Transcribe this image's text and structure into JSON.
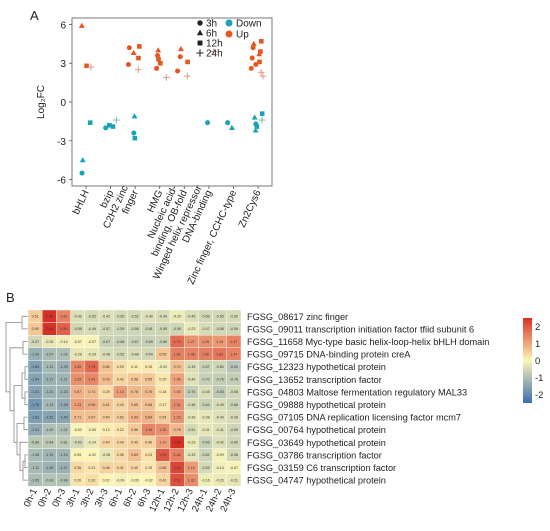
{
  "panels": {
    "a_label": "A",
    "b_label": "B"
  },
  "chart_data": [
    {
      "type": "scatter",
      "ylabel": "Log₂FC",
      "ylim": [
        -6.5,
        6.5
      ],
      "yticks": [
        "6",
        "3",
        "0",
        "-3",
        "-6"
      ],
      "ytick_values": [
        6,
        3,
        0,
        -3,
        -6
      ],
      "categories": [
        "bHLH",
        "bzip",
        "C2H2 zinc finger",
        "HMG",
        "Nucleic acid-binding, OB-fold",
        "Winged helix repressor DNA-binding",
        "Zinc finger, CCHC-type",
        "Zn2Cys6"
      ],
      "category_lines": [
        [
          "bHLH"
        ],
        [
          "bzip"
        ],
        [
          "C2H2 zinc",
          "finger"
        ],
        [
          "HMG"
        ],
        [
          "Nucleic acid-",
          "binding, OB-fold"
        ],
        [
          "Winged helix repressor",
          "DNA-binding"
        ],
        [
          "Zinc finger, CCHC-type"
        ],
        [
          "Zn2Cys6"
        ]
      ],
      "legend": {
        "shapes": [
          "3h",
          "6h",
          "12h",
          "24h"
        ],
        "directions": [
          "Down",
          "Up"
        ],
        "placement": "top-right"
      },
      "colors": {
        "Up": "#e8561f",
        "Down": "#1aa3b8"
      },
      "points": [
        {
          "c": 0,
          "y": 5.9,
          "s": "triangle",
          "d": "Up"
        },
        {
          "c": 0,
          "y": 2.8,
          "s": "square",
          "d": "Up"
        },
        {
          "c": 0,
          "y": 2.7,
          "s": "plus",
          "d": "Up"
        },
        {
          "c": 0,
          "y": -1.6,
          "s": "square",
          "d": "Down"
        },
        {
          "c": 0,
          "y": -4.5,
          "s": "triangle",
          "d": "Down"
        },
        {
          "c": 0,
          "y": -5.5,
          "s": "circle",
          "d": "Down"
        },
        {
          "c": 1,
          "y": -1.4,
          "s": "plus",
          "d": "Down"
        },
        {
          "c": 1,
          "y": -1.8,
          "s": "square",
          "d": "Down"
        },
        {
          "c": 1,
          "y": -2.0,
          "s": "circle",
          "d": "Down"
        },
        {
          "c": 1,
          "y": -1.9,
          "s": "square",
          "d": "Down"
        },
        {
          "c": 2,
          "y": 4.3,
          "s": "square",
          "d": "Up"
        },
        {
          "c": 2,
          "y": 4.2,
          "s": "circle",
          "d": "Up"
        },
        {
          "c": 2,
          "y": 3.8,
          "s": "triangle",
          "d": "Up"
        },
        {
          "c": 2,
          "y": 3.4,
          "s": "square",
          "d": "Up"
        },
        {
          "c": 2,
          "y": 2.9,
          "s": "circle",
          "d": "Up"
        },
        {
          "c": 2,
          "y": 2.5,
          "s": "plus",
          "d": "Up"
        },
        {
          "c": 2,
          "y": -1.1,
          "s": "triangle",
          "d": "Down"
        },
        {
          "c": 2,
          "y": -2.4,
          "s": "circle",
          "d": "Down"
        },
        {
          "c": 2,
          "y": -2.8,
          "s": "square",
          "d": "Down"
        },
        {
          "c": 3,
          "y": 4.0,
          "s": "triangle",
          "d": "Up"
        },
        {
          "c": 3,
          "y": 3.6,
          "s": "circle",
          "d": "Up"
        },
        {
          "c": 3,
          "y": 3.3,
          "s": "square",
          "d": "Up"
        },
        {
          "c": 3,
          "y": 3.0,
          "s": "square",
          "d": "Up"
        },
        {
          "c": 3,
          "y": 2.6,
          "s": "circle",
          "d": "Up"
        },
        {
          "c": 3,
          "y": 1.9,
          "s": "plus",
          "d": "Up"
        },
        {
          "c": 4,
          "y": 4.1,
          "s": "triangle",
          "d": "Up"
        },
        {
          "c": 4,
          "y": 3.5,
          "s": "circle",
          "d": "Up"
        },
        {
          "c": 4,
          "y": 3.1,
          "s": "square",
          "d": "Up"
        },
        {
          "c": 4,
          "y": 2.4,
          "s": "circle",
          "d": "Up"
        },
        {
          "c": 4,
          "y": 2.0,
          "s": "plus",
          "d": "Up"
        },
        {
          "c": 5,
          "y": 3.9,
          "s": "plus",
          "d": "Up"
        },
        {
          "c": 5,
          "y": -1.6,
          "s": "circle",
          "d": "Down"
        },
        {
          "c": 6,
          "y": -1.6,
          "s": "circle",
          "d": "Down"
        },
        {
          "c": 6,
          "y": -2.0,
          "s": "triangle",
          "d": "Down"
        },
        {
          "c": 7,
          "y": 4.7,
          "s": "square",
          "d": "Up"
        },
        {
          "c": 7,
          "y": 4.5,
          "s": "triangle",
          "d": "Up"
        },
        {
          "c": 7,
          "y": 4.2,
          "s": "circle",
          "d": "Up"
        },
        {
          "c": 7,
          "y": 3.9,
          "s": "square",
          "d": "Up"
        },
        {
          "c": 7,
          "y": 3.7,
          "s": "triangle",
          "d": "Up"
        },
        {
          "c": 7,
          "y": 3.4,
          "s": "circle",
          "d": "Up"
        },
        {
          "c": 7,
          "y": 3.1,
          "s": "square",
          "d": "Up"
        },
        {
          "c": 7,
          "y": 2.9,
          "s": "circle",
          "d": "Up"
        },
        {
          "c": 7,
          "y": 2.6,
          "s": "circle",
          "d": "Up"
        },
        {
          "c": 7,
          "y": 2.3,
          "s": "plus",
          "d": "Up"
        },
        {
          "c": 7,
          "y": 2.0,
          "s": "plus",
          "d": "Up"
        },
        {
          "c": 7,
          "y": -0.9,
          "s": "square",
          "d": "Down"
        },
        {
          "c": 7,
          "y": -1.2,
          "s": "triangle",
          "d": "Down"
        },
        {
          "c": 7,
          "y": -1.4,
          "s": "plus",
          "d": "Down"
        },
        {
          "c": 7,
          "y": -1.7,
          "s": "circle",
          "d": "Down"
        },
        {
          "c": 7,
          "y": -1.9,
          "s": "square",
          "d": "Down"
        },
        {
          "c": 7,
          "y": -2.2,
          "s": "triangle",
          "d": "Down"
        }
      ]
    },
    {
      "type": "heatmap",
      "columns": [
        "0h-1",
        "0h-2",
        "0h-3",
        "3h-1",
        "3h-2",
        "3h-3",
        "6h-1",
        "6h-2",
        "6h-3",
        "12h-1",
        "12h-2",
        "12h-3",
        "24h-1",
        "24h-2",
        "24h-3"
      ],
      "rows": [
        "FGSG_08617 zinc finger",
        "FGSG_09011 transcription initiation factor tfiid subunit 6",
        "FGSG_11658  Myc-type basic helix-loop-helix bHLH domain",
        "FGSG_09715 DNA-binding protein creA",
        "FGSG_12323 hypothetical protein",
        "FGSG_13652 transcription factor",
        "FGSG_04803 Maltose fermentation regulatory MAL33",
        "FGSG_09888 hypothetical protein",
        "FGSG_07105 DNA replication licensing factor mcm7",
        "FGSG_00764 hypothetical protein",
        "FGSG_03649 hypothetical protein",
        "FGSG_03786 transcription factor",
        "FGSG_03159 C6 transcription factor",
        "FGSG_04747 hypothetical protein"
      ],
      "values": [
        [
          0.51,
          2.95,
          1.43,
          -0.42,
          -0.52,
          -0.42,
          -0.5,
          -0.52,
          -0.4,
          -0.49,
          -0.2,
          -0.45,
          -0.56,
          -0.55,
          -0.5
        ],
        [
          0.59,
          2.64,
          1.9,
          -0.55,
          -0.49,
          -0.57,
          -0.59,
          -0.58,
          -0.61,
          -0.59,
          -0.59,
          -0.23,
          -0.47,
          -0.58,
          -0.59
        ],
        [
          -0.57,
          -0.26,
          -0.14,
          -0.07,
          -0.07,
          -0.67,
          -0.68,
          -0.67,
          -0.69,
          -0.66,
          1.74,
          1.27,
          1.29,
          1.19,
          1.47
        ],
        [
          -1.3,
          -1.07,
          -1.02,
          -0.29,
          -0.29,
          -0.46,
          -0.52,
          -0.48,
          -0.54,
          0.59,
          1.51,
          1.46,
          1.5,
          1.62,
          1.47
        ],
        [
          -1.6,
          -1.13,
          -1.29,
          1.39,
          1.79,
          0.66,
          0.29,
          0.11,
          0.15,
          -0.2,
          0.7,
          -0.45,
          -0.67,
          -0.6,
          -0.91
        ],
        [
          -1.54,
          -1.27,
          -1.21,
          1.29,
          1.41,
          0.76,
          0.42,
          0.58,
          0.59,
          0.2,
          1.06,
          -0.4,
          -0.7,
          -0.76,
          -0.76
        ],
        [
          -1.51,
          -1.22,
          -1.23,
          0.87,
          0.73,
          0.29,
          1.13,
          0.76,
          0.76,
          0.18,
          1.0,
          -0.75,
          -0.45,
          -0.83,
          -0.55
        ],
        [
          -1.76,
          -1.13,
          -1.38,
          1.13,
          0.96,
          0.61,
          0.43,
          0.65,
          0.68,
          0.17,
          1.31,
          -0.48,
          -0.64,
          -0.49,
          -0.66
        ],
        [
          -1.62,
          -1.51,
          -1.49,
          0.71,
          0.67,
          0.54,
          0.52,
          0.83,
          0.84,
          0.54,
          1.23,
          -0.3,
          -0.28,
          -0.4,
          -0.49
        ],
        [
          -1.41,
          -1.02,
          -1.01,
          -0.03,
          -0.09,
          0.13,
          0.22,
          0.56,
          1.44,
          1.3,
          0.78,
          -0.51,
          -0.31,
          -0.41,
          -0.59
        ],
        [
          -0.89,
          -0.84,
          -0.81,
          -0.53,
          -0.24,
          0.4,
          0.43,
          0.45,
          0.46,
          1.1,
          2.59,
          -0.23,
          -0.69,
          -0.42,
          -0.6
        ],
        [
          -1.08,
          -1.19,
          -1.19,
          0.05,
          -0.02,
          -0.28,
          0.36,
          0.69,
          0.23,
          1.99,
          1.46,
          -0.33,
          -0.62,
          -0.09,
          -0.56
        ],
        [
          -1.11,
          -1.26,
          -1.27,
          0.36,
          0.21,
          0.46,
          0.41,
          0.4,
          0.19,
          0.66,
          2.22,
          1.15,
          -0.53,
          -0.14,
          -0.07
        ],
        [
          -1.05,
          -0.93,
          -0.98,
          0.2,
          0.32,
          0.02,
          -0.09,
          -0.05,
          -0.02,
          0.42,
          2.11,
          1.32,
          -0.16,
          -0.23,
          -0.31
        ]
      ],
      "legend": {
        "ticks": [
          "2",
          "1",
          "0",
          "-1",
          "-2"
        ],
        "tick_values": [
          2,
          1,
          0,
          -1,
          -2
        ],
        "range": [
          -2.5,
          2.5
        ],
        "low": "#3b6fb0",
        "mid": "#fdf6b8",
        "high": "#d73027",
        "placement": "right"
      }
    }
  ]
}
